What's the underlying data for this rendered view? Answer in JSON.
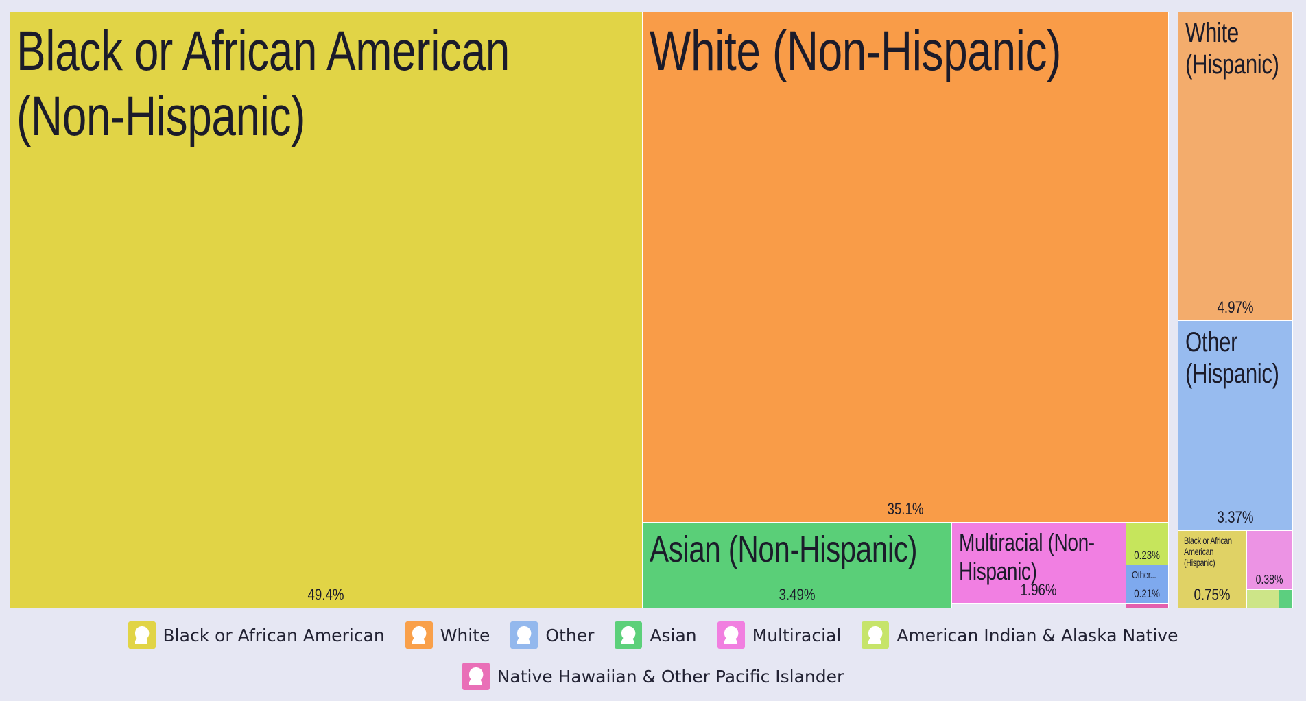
{
  "chart_data": {
    "type": "treemap",
    "groups": [
      {
        "name": "Black or African American",
        "color": "#e1d446"
      },
      {
        "name": "White",
        "color": "#f9a04a"
      },
      {
        "name": "Other",
        "color": "#93b8ed"
      },
      {
        "name": "Asian",
        "color": "#5cd07a"
      },
      {
        "name": "Multiracial",
        "color": "#f17fe0"
      },
      {
        "name": "American Indian & Alaska Native",
        "color": "#c6e46a"
      },
      {
        "name": "Native Hawaiian & Other Pacific Islander",
        "color": "#e96fb7"
      }
    ],
    "tiles": [
      {
        "label": "Black or African American (Non-Hispanic)",
        "value_label": "49.4%",
        "value": 49.4,
        "group": "Black or African American",
        "color": "#e1d446"
      },
      {
        "label": "White (Non-Hispanic)",
        "value_label": "35.1%",
        "value": 35.1,
        "group": "White",
        "color": "#f99c48"
      },
      {
        "label": "Asian (Non-Hispanic)",
        "value_label": "3.49%",
        "value": 3.49,
        "group": "Asian",
        "color": "#5acf78"
      },
      {
        "label": "Multiracial (Non-Hispanic)",
        "value_label": "1.96%",
        "value": 1.96,
        "group": "Multiracial",
        "color": "#f17fe2"
      },
      {
        "label": "",
        "value_label": "0.23%",
        "value": 0.23,
        "group": "American Indian & Alaska Native",
        "color": "#c6e55c"
      },
      {
        "label": "Other...",
        "value_label": "0.21%",
        "value": 0.21,
        "group": "Other",
        "color": "#7ea9ee"
      },
      {
        "label": "",
        "value_label": "",
        "value": 0.05,
        "group": "Native Hawaiian & Other Pacific Islander",
        "color": "#e45fad"
      },
      {
        "label": "White (Hispanic)",
        "value_label": "4.97%",
        "value": 4.97,
        "group": "White",
        "color": "#f3ac6c"
      },
      {
        "label": "Other (Hispanic)",
        "value_label": "3.37%",
        "value": 3.37,
        "group": "Other",
        "color": "#97bbef"
      },
      {
        "label": "Black or African American (Hispanic)",
        "value_label": "0.75%",
        "value": 0.75,
        "group": "Black or African American",
        "color": "#e0d265"
      },
      {
        "label": "",
        "value_label": "0.38%",
        "value": 0.38,
        "group": "Multiracial",
        "color": "#ec93e4"
      },
      {
        "label": "",
        "value_label": "",
        "value": 0.1,
        "group": "American Indian & Alaska Native",
        "color": "#cde588"
      },
      {
        "label": "",
        "value_label": "",
        "value": 0.03,
        "group": "Asian",
        "color": "#5ccf7f"
      }
    ]
  }
}
